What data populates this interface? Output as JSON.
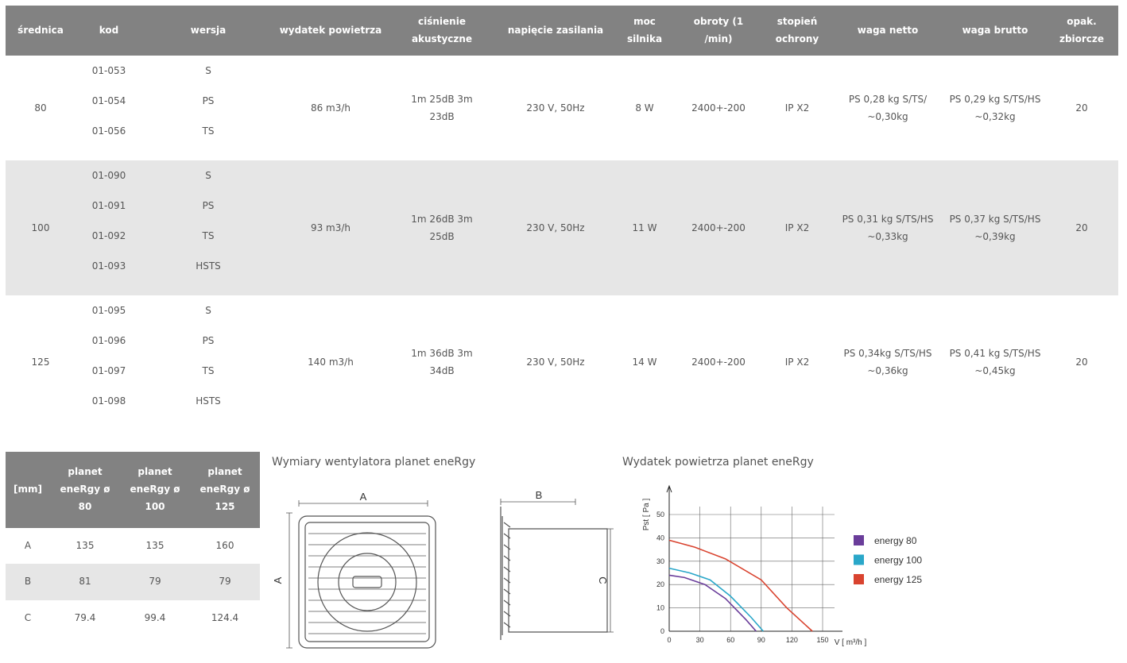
{
  "table": {
    "headers": [
      "średnica",
      "kod",
      "wersja",
      "wydatek powietrza",
      "ciśnienie akustyczne",
      "napięcie zasilania",
      "moc silnika",
      "obroty (1 /min)",
      "stopień ochrony",
      "waga netto",
      "waga brutto",
      "opak. zbiorcze"
    ],
    "rows": [
      [
        "80",
        [
          "01-053",
          "01-054",
          "01-056"
        ],
        [
          "S",
          "PS",
          "TS"
        ],
        "86 m3/h",
        "1m 25dB 3m 23dB",
        "230 V, 50Hz",
        "8 W",
        "2400+-200",
        "IP X2",
        "PS 0,28 kg S/TS/ ~0,30kg",
        "PS 0,29 kg S/TS/HS ~0,32kg",
        "20"
      ],
      [
        "100",
        [
          "01-090",
          "01-091",
          "01-092",
          "01-093"
        ],
        [
          "S",
          "PS",
          "TS",
          "HSTS"
        ],
        "93 m3/h",
        "1m 26dB 3m 25dB",
        "230 V, 50Hz",
        "11 W",
        "2400+-200",
        "IP X2",
        "PS 0,31 kg S/TS/HS ~0,33kg",
        "PS 0,37 kg S/TS/HS ~0,39kg",
        "20"
      ],
      [
        "125",
        [
          "01-095",
          "01-096",
          "01-097",
          "01-098"
        ],
        [
          "S",
          "PS",
          "TS",
          "HSTS"
        ],
        "140 m3/h",
        "1m 36dB 3m 34dB",
        "230 V, 50Hz",
        "14 W",
        "2400+-200",
        "IP X2",
        "PS 0,34kg S/TS/HS ~0,36kg",
        "PS 0,41 kg S/TS/HS ~0,45kg",
        "20"
      ]
    ]
  },
  "dimensions": {
    "headers": [
      "[mm]",
      "planet eneRgy ø 80",
      "planet eneRgy ø 100",
      "planet eneRgy ø 125"
    ],
    "rows": [
      [
        "A",
        "135",
        "135",
        "160"
      ],
      [
        "B",
        "81",
        "79",
        "79"
      ],
      [
        "C",
        "79.4",
        "99.4",
        "124.4"
      ]
    ]
  },
  "drawing": {
    "title": "Wymiary wentylatora planet eneRgy",
    "labels": [
      "A",
      "A",
      "B",
      "C"
    ]
  },
  "chart_data": {
    "type": "line",
    "title": "Wydatek powietrza planet eneRgy",
    "x_label": "V [ m³/h ]",
    "y_label": "Pst [ Pa ]",
    "xlim": [
      0,
      150
    ],
    "xticks": [
      0,
      30,
      60,
      90,
      120,
      150
    ],
    "ylim": [
      0,
      50
    ],
    "yticks": [
      0,
      10,
      20,
      30,
      40,
      50
    ],
    "grid": true,
    "series": [
      {
        "name": "energy 80",
        "color": "#6a3d9a",
        "x": [
          0,
          15,
          35,
          55,
          75,
          85
        ],
        "values": [
          24,
          23,
          20,
          14,
          5,
          0
        ]
      },
      {
        "name": "energy 100",
        "color": "#2aa7c9",
        "x": [
          0,
          20,
          40,
          60,
          80,
          92
        ],
        "values": [
          27,
          25,
          22,
          15,
          6,
          0
        ]
      },
      {
        "name": "energy 125",
        "color": "#d9432f",
        "x": [
          0,
          25,
          55,
          90,
          115,
          140
        ],
        "values": [
          39,
          36,
          31,
          22,
          10,
          0
        ]
      }
    ]
  }
}
